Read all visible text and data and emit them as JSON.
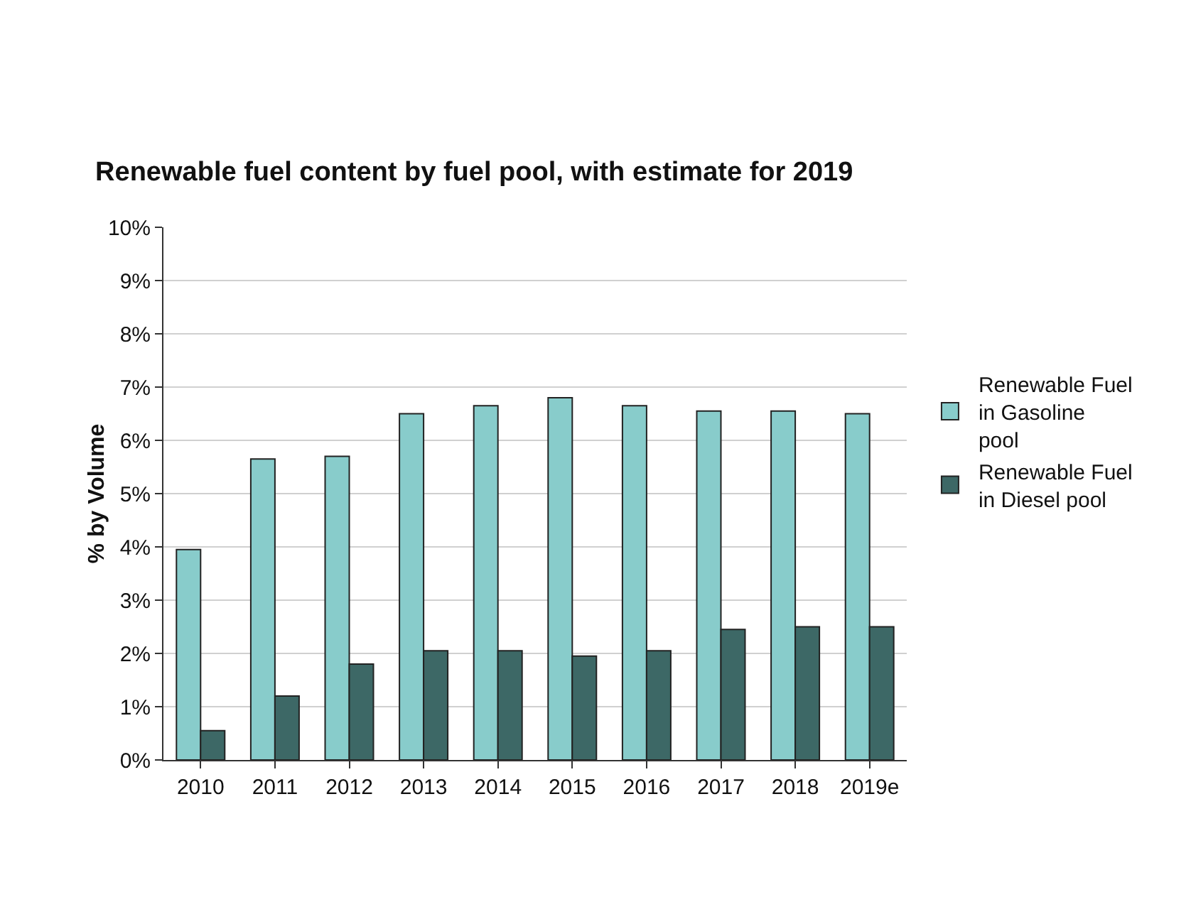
{
  "chart_data": {
    "type": "bar",
    "title": "Renewable fuel content by fuel pool, with estimate for 2019",
    "ylabel": "% by Volume",
    "categories": [
      "2010",
      "2011",
      "2012",
      "2013",
      "2014",
      "2015",
      "2016",
      "2017",
      "2018",
      "2019e"
    ],
    "series": [
      {
        "name": "Renewable Fuel in Gasoline pool",
        "color": "#88cccb",
        "values": [
          3.95,
          5.65,
          5.7,
          6.5,
          6.65,
          6.8,
          6.65,
          6.55,
          6.55,
          6.5
        ]
      },
      {
        "name": "Renewable Fuel in Diesel pool",
        "color": "#3d6866",
        "values": [
          0.55,
          1.2,
          1.8,
          2.05,
          2.05,
          1.95,
          2.05,
          2.45,
          2.5,
          2.5
        ]
      }
    ],
    "ylim": [
      0,
      10
    ],
    "yticks": [
      {
        "value": 0,
        "label": "0%"
      },
      {
        "value": 1,
        "label": "1%"
      },
      {
        "value": 2,
        "label": "2%"
      },
      {
        "value": 3,
        "label": "3%"
      },
      {
        "value": 4,
        "label": "4%"
      },
      {
        "value": 5,
        "label": "5%"
      },
      {
        "value": 6,
        "label": "6%"
      },
      {
        "value": 7,
        "label": "7%"
      },
      {
        "value": 8,
        "label": "8%"
      },
      {
        "value": 9,
        "label": "9%"
      },
      {
        "value": 10,
        "label": "10%"
      }
    ],
    "grid": "y",
    "legend": "right"
  }
}
